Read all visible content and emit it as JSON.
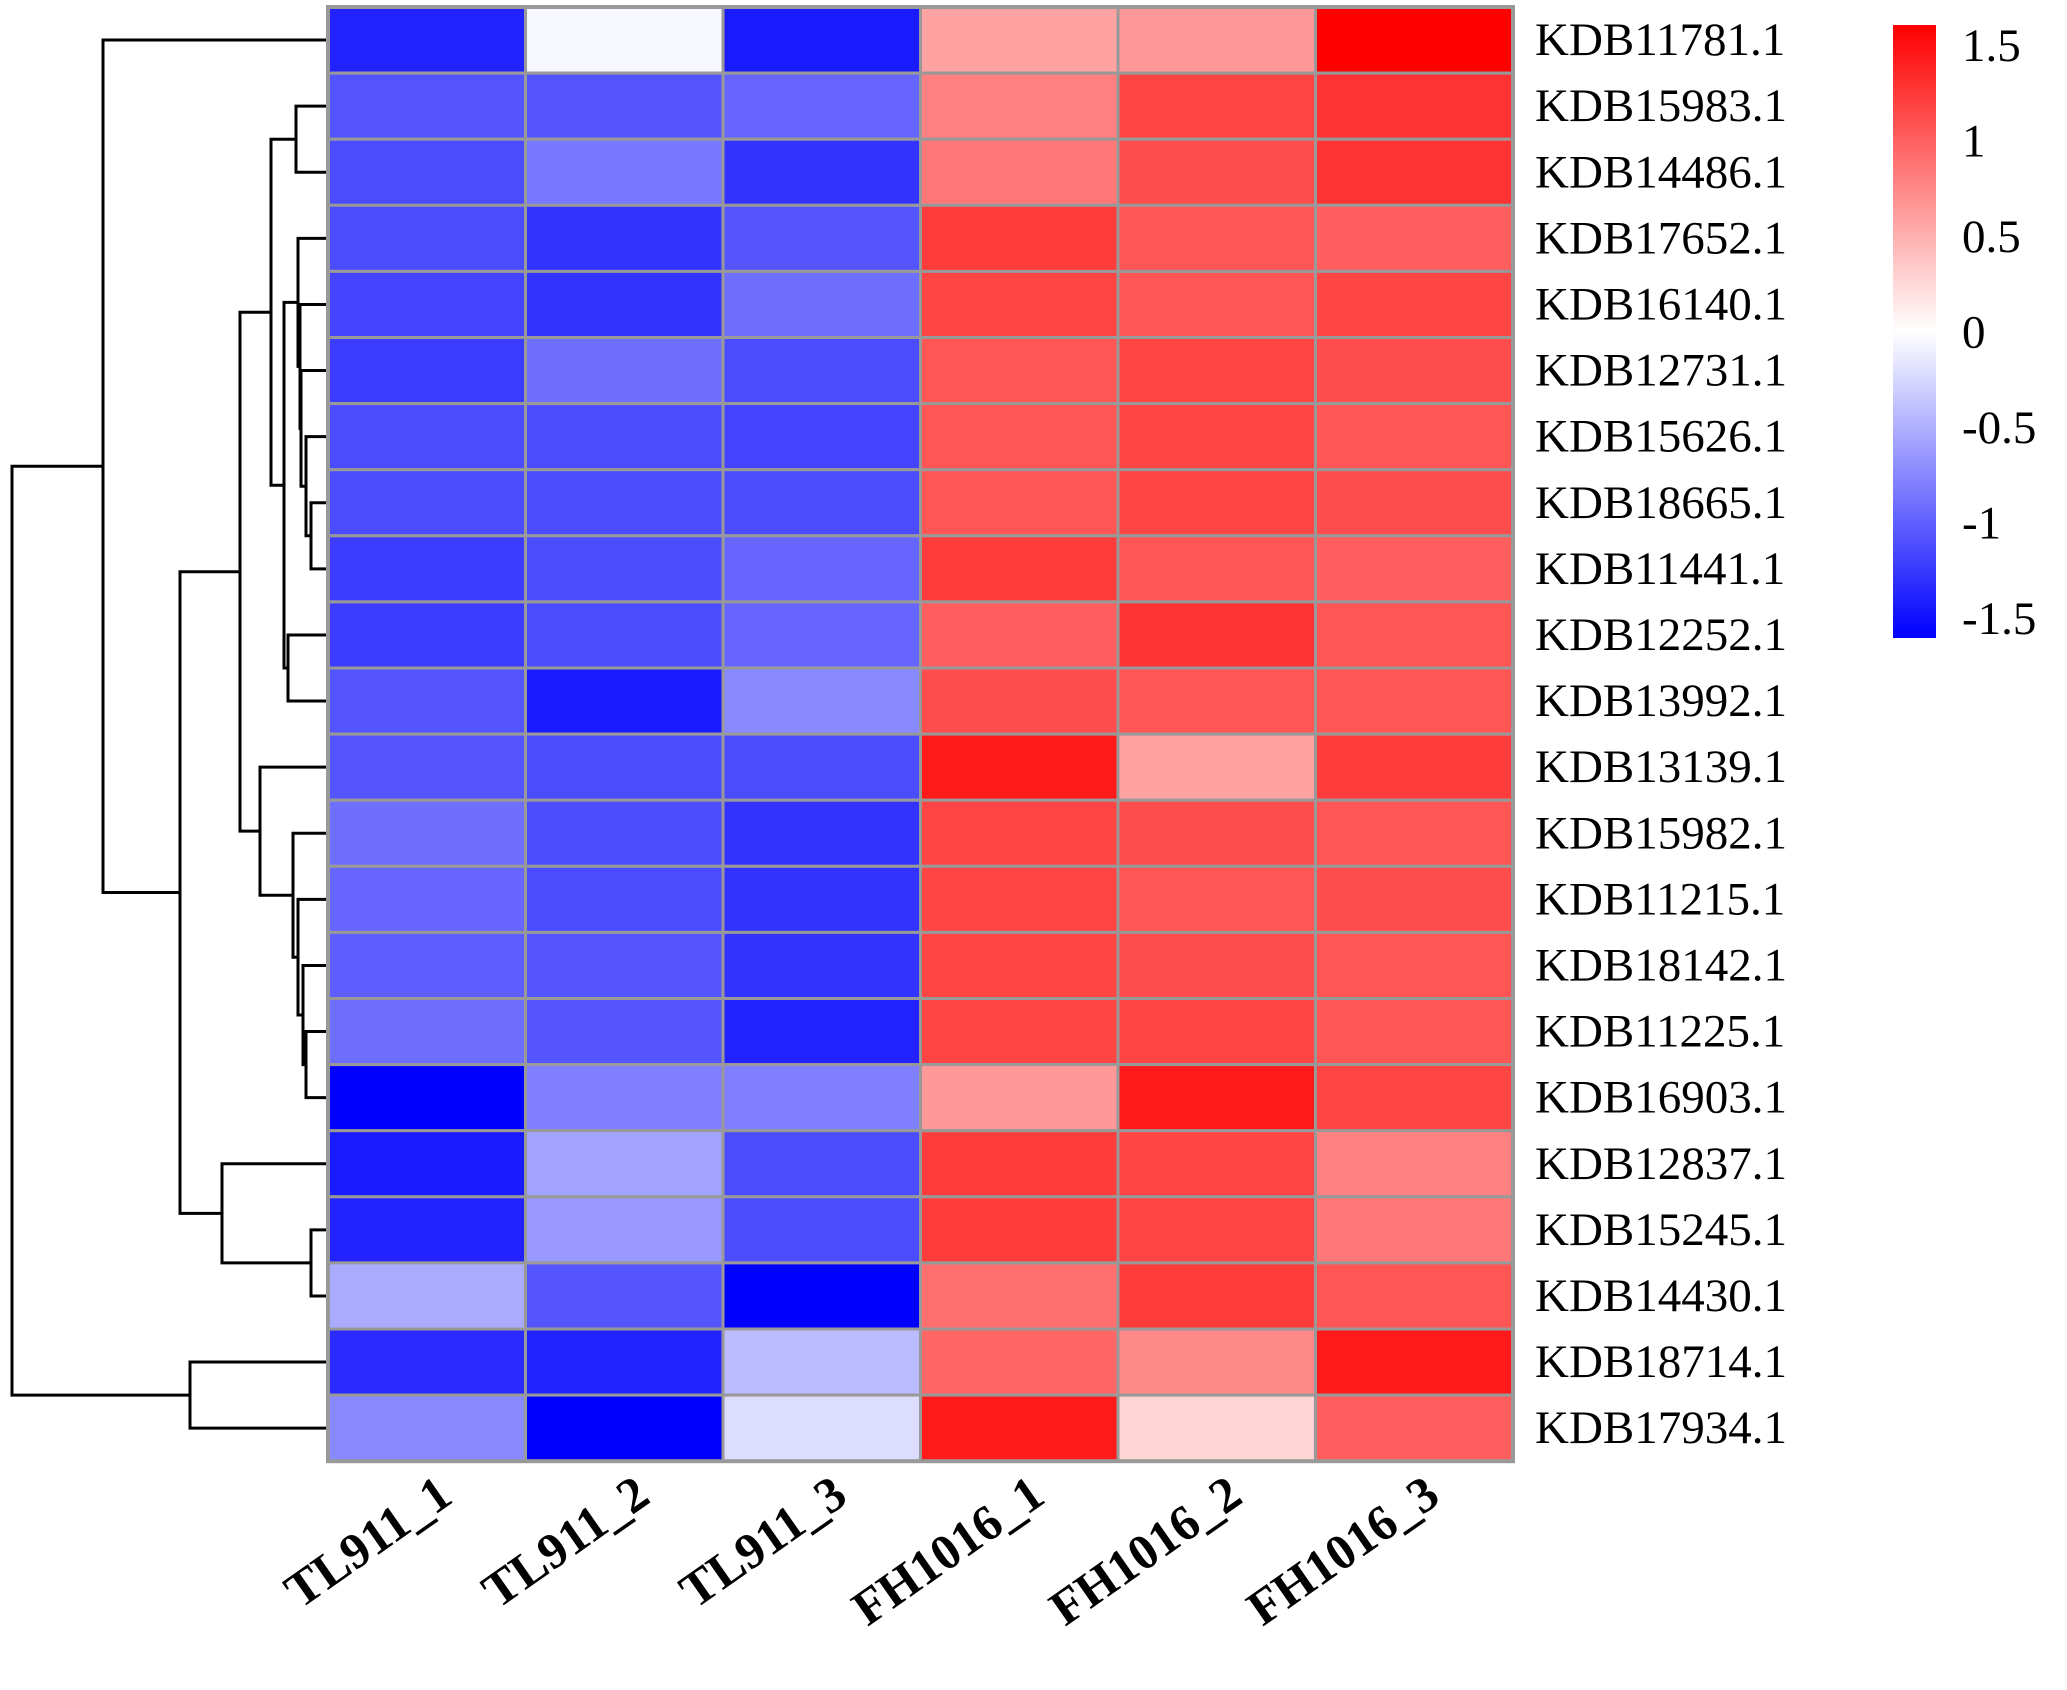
{
  "chart_data": {
    "type": "heatmap",
    "title": "",
    "xlabel": "",
    "ylabel": "",
    "columns": [
      "TL911_1",
      "TL911_2",
      "TL911_3",
      "FH1016_1",
      "FH1016_2",
      "FH1016_3"
    ],
    "rows": [
      "KDB11781.1",
      "KDB15983.1",
      "KDB14486.1",
      "KDB17652.1",
      "KDB16140.1",
      "KDB12731.1",
      "KDB15626.1",
      "KDB18665.1",
      "KDB11441.1",
      "KDB12252.1",
      "KDB13992.1",
      "KDB13139.1",
      "KDB15982.1",
      "KDB11215.1",
      "KDB18142.1",
      "KDB11225.1",
      "KDB16903.1",
      "KDB12837.1",
      "KDB15245.1",
      "KDB14430.1",
      "KDB18714.1",
      "KDB17934.1"
    ],
    "values": [
      [
        -1.3,
        -0.05,
        -1.35,
        0.55,
        0.6,
        1.5
      ],
      [
        -1.0,
        -1.0,
        -0.9,
        0.75,
        1.1,
        1.2
      ],
      [
        -1.05,
        -0.8,
        -1.2,
        0.8,
        1.05,
        1.2
      ],
      [
        -1.05,
        -1.2,
        -1.0,
        1.15,
        1.0,
        0.95
      ],
      [
        -1.1,
        -1.2,
        -0.85,
        1.1,
        1.0,
        1.1
      ],
      [
        -1.15,
        -0.85,
        -1.05,
        1.0,
        1.1,
        1.05
      ],
      [
        -1.05,
        -1.05,
        -1.1,
        1.0,
        1.1,
        1.0
      ],
      [
        -1.05,
        -1.05,
        -1.05,
        1.0,
        1.1,
        1.05
      ],
      [
        -1.15,
        -1.05,
        -0.9,
        1.15,
        1.0,
        0.95
      ],
      [
        -1.15,
        -1.05,
        -0.9,
        0.95,
        1.2,
        1.0
      ],
      [
        -1.0,
        -1.35,
        -0.7,
        1.05,
        1.0,
        1.0
      ],
      [
        -1.0,
        -1.05,
        -1.05,
        1.35,
        0.55,
        1.15
      ],
      [
        -0.85,
        -1.05,
        -1.2,
        1.1,
        1.05,
        1.0
      ],
      [
        -0.9,
        -1.05,
        -1.2,
        1.1,
        1.0,
        1.05
      ],
      [
        -0.95,
        -1.0,
        -1.2,
        1.1,
        1.05,
        1.0
      ],
      [
        -0.85,
        -1.0,
        -1.3,
        1.1,
        1.1,
        1.0
      ],
      [
        -1.5,
        -0.75,
        -0.75,
        0.6,
        1.35,
        1.1
      ],
      [
        -1.35,
        -0.55,
        -1.05,
        1.15,
        1.1,
        0.75
      ],
      [
        -1.3,
        -0.6,
        -1.05,
        1.15,
        1.1,
        0.8
      ],
      [
        -0.5,
        -1.0,
        -1.5,
        0.85,
        1.15,
        1.0
      ],
      [
        -1.25,
        -1.3,
        -0.4,
        0.9,
        0.7,
        1.35
      ],
      [
        -0.7,
        -1.5,
        -0.2,
        1.35,
        0.25,
        0.95
      ]
    ],
    "colorbar": {
      "min": -1.5,
      "max": 1.5,
      "ticks": [
        "1.5",
        "1",
        "0.5",
        "0",
        "-0.5",
        "-1",
        "-1.5"
      ],
      "low_color": "#0000ff",
      "mid_color": "#ffffff",
      "high_color": "#ff0000",
      "placement": "top-right"
    },
    "grid": true,
    "grid_color": "#999999",
    "dendrogram": "rows, left side"
  }
}
